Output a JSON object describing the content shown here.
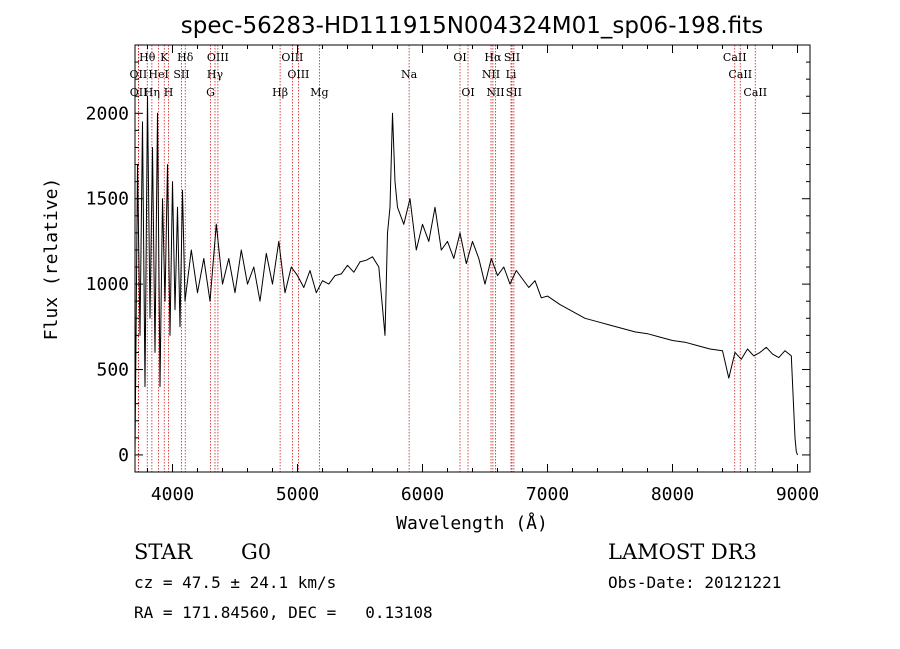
{
  "chart_data": {
    "type": "line",
    "title": "spec-56283-HD111915N004324M01_sp06-198.fits",
    "xlabel": "Wavelength (Å)",
    "ylabel": "Flux (relative)",
    "xlim": [
      3700,
      9100
    ],
    "ylim": [
      -100,
      2400
    ],
    "xticks": [
      4000,
      5000,
      6000,
      7000,
      8000,
      9000
    ],
    "yticks": [
      0,
      500,
      1000,
      1500,
      2000
    ],
    "series": [
      {
        "name": "flux",
        "x": [
          3700,
          3720,
          3740,
          3760,
          3780,
          3800,
          3820,
          3840,
          3860,
          3880,
          3900,
          3920,
          3940,
          3960,
          3980,
          4000,
          4020,
          4040,
          4060,
          4080,
          4100,
          4150,
          4200,
          4250,
          4300,
          4350,
          4400,
          4450,
          4500,
          4550,
          4600,
          4650,
          4700,
          4750,
          4800,
          4850,
          4900,
          4950,
          5000,
          5050,
          5100,
          5150,
          5200,
          5250,
          5300,
          5350,
          5400,
          5450,
          5500,
          5550,
          5600,
          5650,
          5700,
          5720,
          5740,
          5760,
          5780,
          5800,
          5850,
          5900,
          5950,
          6000,
          6050,
          6100,
          6150,
          6200,
          6250,
          6300,
          6350,
          6400,
          6450,
          6500,
          6550,
          6600,
          6650,
          6700,
          6750,
          6800,
          6850,
          6900,
          6950,
          7000,
          7100,
          7200,
          7300,
          7400,
          7500,
          7600,
          7700,
          7800,
          7900,
          8000,
          8100,
          8200,
          8300,
          8400,
          8450,
          8500,
          8550,
          8600,
          8650,
          8700,
          8750,
          8800,
          8850,
          8900,
          8950,
          8980,
          8990,
          9000
        ],
        "values": [
          0,
          1700,
          700,
          1950,
          400,
          2100,
          800,
          1800,
          600,
          2000,
          400,
          1500,
          900,
          1700,
          700,
          1600,
          850,
          1450,
          750,
          1550,
          900,
          1200,
          950,
          1150,
          900,
          1350,
          1000,
          1150,
          950,
          1200,
          1000,
          1100,
          900,
          1180,
          1000,
          1250,
          950,
          1100,
          1050,
          980,
          1080,
          950,
          1020,
          1000,
          1050,
          1060,
          1110,
          1070,
          1130,
          1140,
          1160,
          1100,
          700,
          1300,
          1450,
          2000,
          1600,
          1450,
          1350,
          1500,
          1200,
          1350,
          1250,
          1450,
          1200,
          1250,
          1150,
          1300,
          1120,
          1250,
          1150,
          1000,
          1150,
          1050,
          1100,
          1000,
          1080,
          1030,
          980,
          1020,
          920,
          930,
          880,
          840,
          800,
          780,
          760,
          740,
          720,
          710,
          690,
          670,
          660,
          640,
          620,
          610,
          450,
          600,
          560,
          620,
          580,
          600,
          630,
          590,
          570,
          610,
          580,
          100,
          20,
          0
        ]
      }
    ],
    "line_labels": [
      {
        "text": "Hθ",
        "x": 3798,
        "row": 1
      },
      {
        "text": "K",
        "x": 3934,
        "row": 1
      },
      {
        "text": "Hδ",
        "x": 4102,
        "row": 1
      },
      {
        "text": "OIII",
        "x": 4363,
        "row": 1
      },
      {
        "text": "OIII",
        "x": 4959,
        "row": 1
      },
      {
        "text": "OI",
        "x": 6300,
        "row": 1
      },
      {
        "text": "Hα",
        "x": 6563,
        "row": 1
      },
      {
        "text": "SII",
        "x": 6716,
        "row": 1
      },
      {
        "text": "CaII",
        "x": 8498,
        "row": 1
      },
      {
        "text": "OII",
        "x": 3727,
        "row": 2
      },
      {
        "text": "HeI",
        "x": 3889,
        "row": 2
      },
      {
        "text": "SII",
        "x": 4072,
        "row": 2
      },
      {
        "text": "Hγ",
        "x": 4340,
        "row": 2
      },
      {
        "text": "OIII",
        "x": 5007,
        "row": 2
      },
      {
        "text": "Na",
        "x": 5893,
        "row": 2
      },
      {
        "text": "NII",
        "x": 6548,
        "row": 2
      },
      {
        "text": "Li",
        "x": 6708,
        "row": 2
      },
      {
        "text": "CaII",
        "x": 8542,
        "row": 2
      },
      {
        "text": "OII",
        "x": 3729,
        "row": 3
      },
      {
        "text": "Hη",
        "x": 3835,
        "row": 3
      },
      {
        "text": "H",
        "x": 3968,
        "row": 3
      },
      {
        "text": "G",
        "x": 4304,
        "row": 3
      },
      {
        "text": "Hβ",
        "x": 4861,
        "row": 3
      },
      {
        "text": "Mg",
        "x": 5175,
        "row": 3
      },
      {
        "text": "OI",
        "x": 6364,
        "row": 3
      },
      {
        "text": "NII",
        "x": 6584,
        "row": 3
      },
      {
        "text": "SII",
        "x": 6731,
        "row": 3
      },
      {
        "text": "CaII",
        "x": 8662,
        "row": 3
      }
    ],
    "line_positions": [
      3727,
      3729,
      3798,
      3835,
      3889,
      3934,
      3968,
      4072,
      4102,
      4304,
      4340,
      4363,
      4861,
      4959,
      5007,
      5175,
      5893,
      6300,
      6364,
      6548,
      6563,
      6584,
      6708,
      6716,
      6731,
      8498,
      8542,
      8662
    ]
  },
  "info": {
    "object_class": "STAR",
    "subclass": "G0",
    "survey": "LAMOST DR3",
    "redshift_line": "cz = 47.5 ± 24.1 km/s",
    "obs_date": "Obs-Date: 20121221",
    "coords": "RA = 171.84560, DEC =   0.13108"
  },
  "colors": {
    "line_marker": "#c8201e",
    "spectrum": "#000000",
    "axis": "#000000"
  }
}
